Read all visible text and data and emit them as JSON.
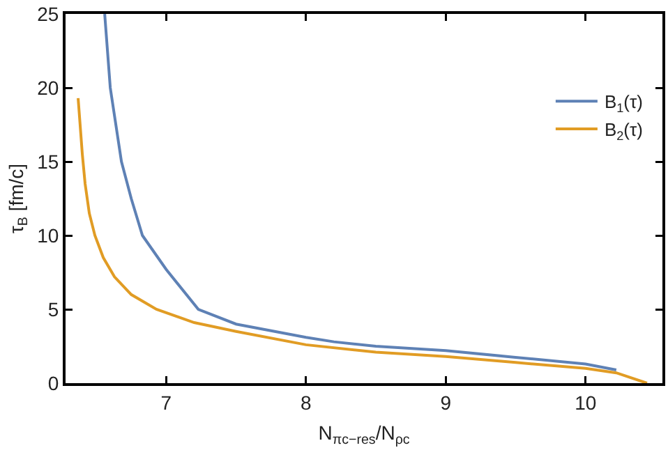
{
  "chart_data": {
    "type": "line",
    "xlabel": "N$_{πc−res}$/N$_{ρc}$",
    "ylabel": "τ$_{B}$ [fm/c]",
    "xlim": [
      6.28,
      10.55
    ],
    "xticks": [
      7,
      8,
      9,
      10
    ],
    "ylim": [
      0,
      25
    ],
    "yticks": [
      0,
      5,
      10,
      15,
      20,
      25
    ],
    "grid": false,
    "legend": "top right",
    "marker": "none",
    "line_style": "solid",
    "series": [
      {
        "name": "B$_{1}$(τ)",
        "color": "#5e81b5",
        "x": [
          6.56,
          6.6,
          6.68,
          6.75,
          6.83,
          7.0,
          7.23,
          7.5,
          8.0,
          8.2,
          8.5,
          9.0,
          9.5,
          10.0,
          10.22
        ],
        "values": [
          25,
          20,
          15,
          12.5,
          10,
          7.7,
          5,
          4.0,
          3.1,
          2.8,
          2.5,
          2.2,
          1.75,
          1.3,
          0.9
        ]
      },
      {
        "name": "B$_{2}$(τ)",
        "color": "#e19c24",
        "x": [
          6.37,
          6.4,
          6.42,
          6.45,
          6.49,
          6.55,
          6.63,
          6.75,
          6.93,
          7.2,
          7.5,
          8.0,
          8.5,
          9.0,
          9.5,
          10.0,
          10.22,
          10.44
        ],
        "values": [
          19.3,
          15.5,
          13.5,
          11.5,
          10,
          8.5,
          7.2,
          6,
          5,
          4.1,
          3.5,
          2.6,
          2.1,
          1.8,
          1.4,
          1.0,
          0.7,
          0
        ]
      }
    ]
  }
}
